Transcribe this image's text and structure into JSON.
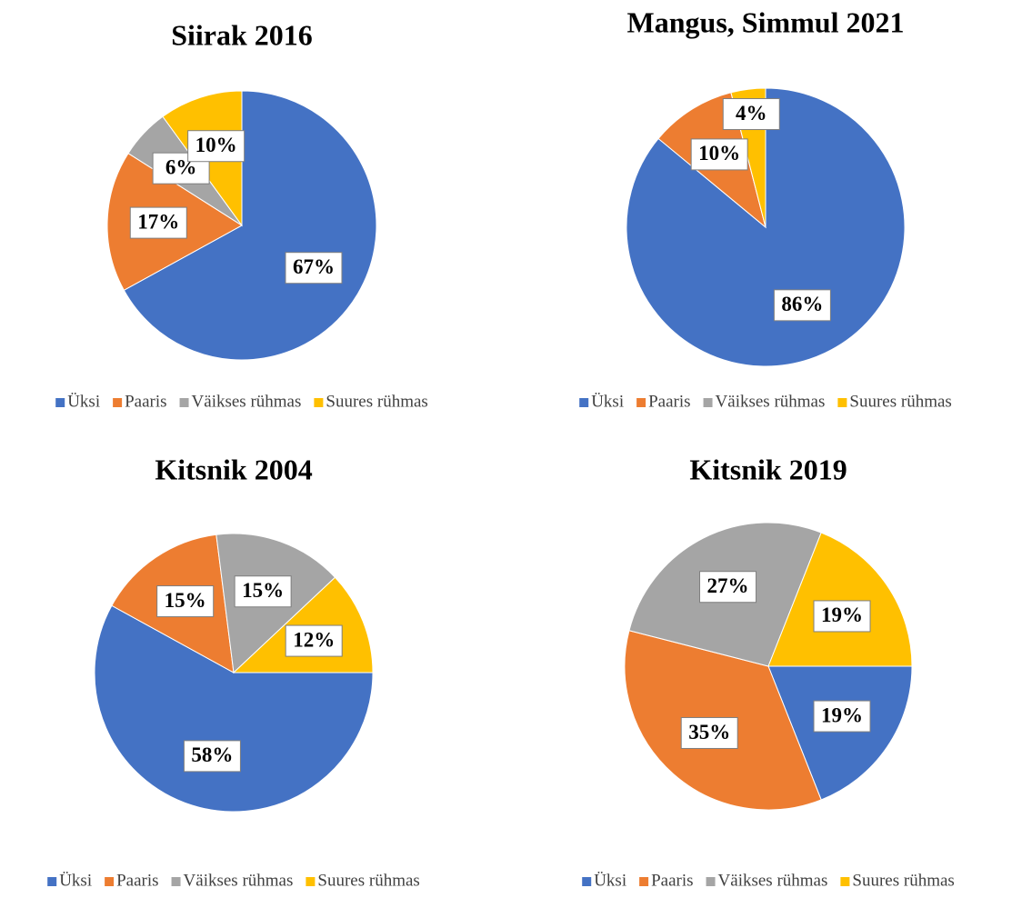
{
  "chart_data": [
    {
      "type": "pie",
      "title": "Siirak 2016",
      "categories": [
        "Üksi",
        "Paaris",
        "Väikses rühmas",
        "Suures rühmas"
      ],
      "values": [
        67,
        17,
        6,
        10
      ],
      "value_labels": [
        "67%",
        "17%",
        "6%",
        "10%"
      ],
      "colors": [
        "#4472c4",
        "#ed7d31",
        "#a5a5a5",
        "#ffc000"
      ]
    },
    {
      "type": "pie",
      "title": "Mangus, Simmul 2021",
      "categories": [
        "Üksi",
        "Paaris",
        "Väikses rühmas",
        "Suures rühmas"
      ],
      "values": [
        86,
        10,
        0,
        4
      ],
      "value_labels": [
        "86%",
        "10%",
        null,
        "4%"
      ],
      "colors": [
        "#4472c4",
        "#ed7d31",
        "#a5a5a5",
        "#ffc000"
      ]
    },
    {
      "type": "pie",
      "title": "Kitsnik 2004",
      "categories": [
        "Üksi",
        "Paaris",
        "Väikses rühmas",
        "Suures rühmas"
      ],
      "values": [
        58,
        15,
        15,
        12
      ],
      "value_labels": [
        "58%",
        "15%",
        "15%",
        "12%"
      ],
      "colors": [
        "#4472c4",
        "#ed7d31",
        "#a5a5a5",
        "#ffc000"
      ]
    },
    {
      "type": "pie",
      "title": "Kitsnik 2019",
      "categories": [
        "Üksi",
        "Paaris",
        "Väikses rühmas",
        "Suures rühmas"
      ],
      "values": [
        19,
        35,
        27,
        19
      ],
      "value_labels": [
        "19%",
        "35%",
        "27%",
        "19%"
      ],
      "colors": [
        "#4472c4",
        "#ed7d31",
        "#a5a5a5",
        "#ffc000"
      ]
    }
  ]
}
